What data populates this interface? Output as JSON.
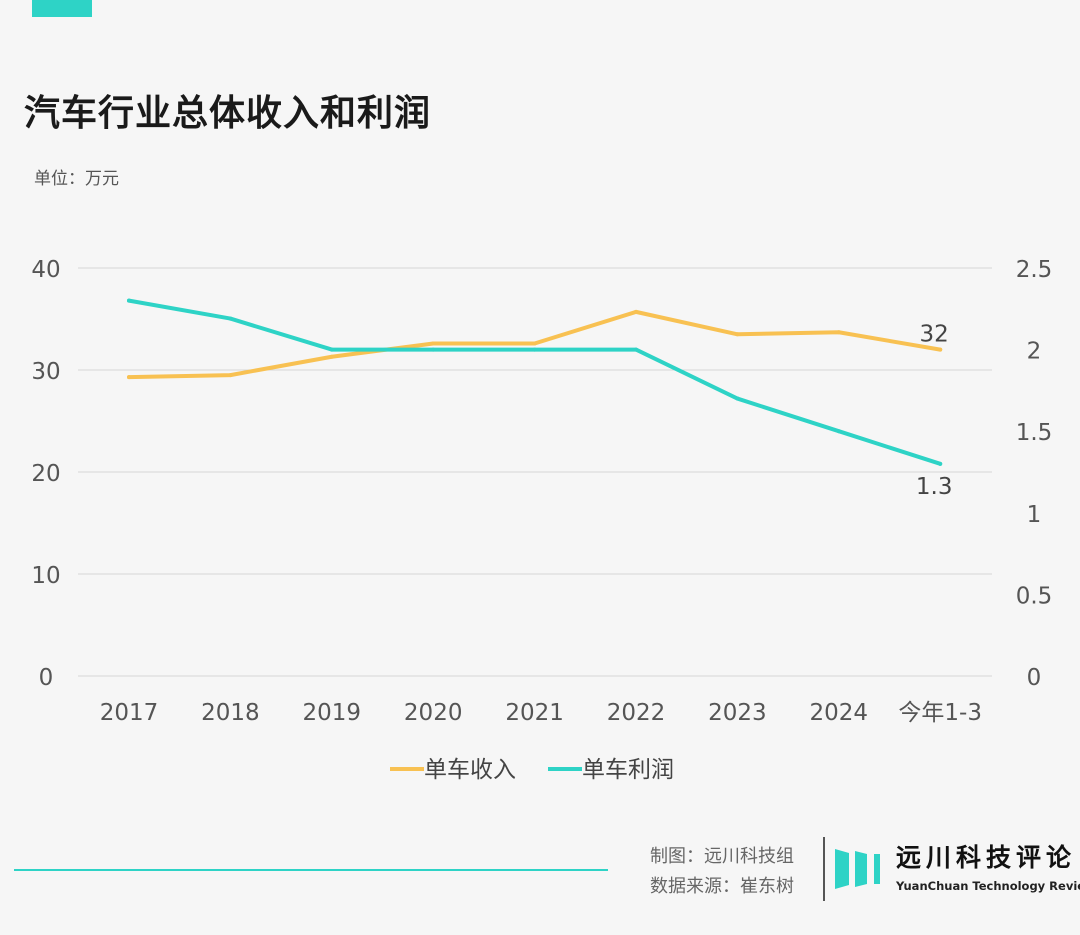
{
  "title": "汽车行业总体收入和利润",
  "unit_label": "单位：万元",
  "credits": {
    "made_by": "制图：远川科技组",
    "source": "数据来源：崔东树"
  },
  "logo": {
    "name_cn": "远川科技评论",
    "name_en": "YuanChuan Technology Review"
  },
  "colors": {
    "revenue": "#f8c152",
    "profit": "#2ed3c6",
    "accent": "#2ed3c6"
  },
  "chart_data": {
    "type": "line",
    "categories": [
      "2017",
      "2018",
      "2019",
      "2020",
      "2021",
      "2022",
      "2023",
      "2024",
      "今年1-3"
    ],
    "y_left": {
      "range": [
        0,
        40
      ],
      "ticks": [
        "0",
        "10",
        "20",
        "30",
        "40"
      ]
    },
    "y_right": {
      "range": [
        0,
        2.5
      ],
      "ticks": [
        "0",
        "0.5",
        "1",
        "1.5",
        "2",
        "2.5"
      ]
    },
    "grid": true,
    "legend_position": "bottom",
    "series": [
      {
        "name": "单车收入",
        "axis": "left",
        "values": [
          29.3,
          29.5,
          31.3,
          32.6,
          32.6,
          35.7,
          33.5,
          33.7,
          32
        ],
        "end_label": "32"
      },
      {
        "name": "单车利润",
        "axis": "right",
        "values": [
          2.3,
          2.19,
          2.0,
          2.0,
          2.0,
          2.0,
          1.7,
          1.5,
          1.3
        ],
        "end_label": "1.3"
      }
    ]
  }
}
